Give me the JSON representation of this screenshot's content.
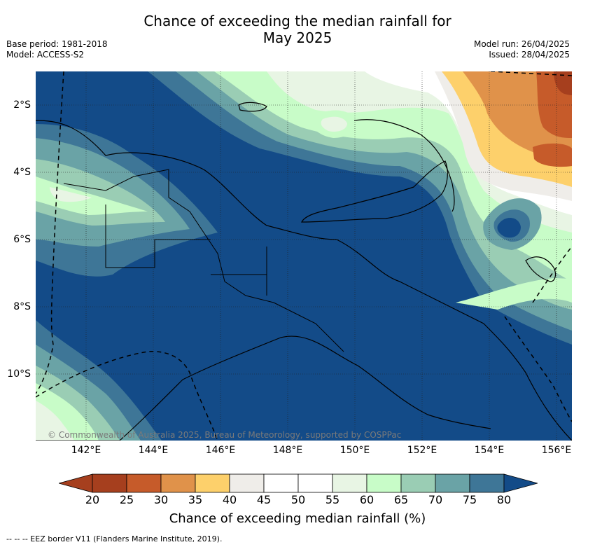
{
  "title_line1": "Chance of exceeding the median rainfall for",
  "title_line2": "May 2025",
  "base_period": "Base period: 1981-2018",
  "model": "Model: ACCESS-S2",
  "model_run": "Model run: 26/04/2025",
  "issued": "Issued: 28/04/2025",
  "copyright": "© Commonwealth of Australia 2025, Bureau of Meteorology, supported by COSPPac",
  "lon_ticks": [
    "142°E",
    "144°E",
    "146°E",
    "148°E",
    "150°E",
    "152°E",
    "154°E",
    "156°E"
  ],
  "lat_ticks": [
    "2°S",
    "4°S",
    "6°S",
    "8°S",
    "10°S"
  ],
  "colorbar": {
    "label": "Chance of exceeding median rainfall (%)",
    "ticks": [
      "20",
      "25",
      "30",
      "35",
      "40",
      "45",
      "50",
      "55",
      "60",
      "65",
      "70",
      "75",
      "80"
    ],
    "colors": [
      "#a63f1e",
      "#c65b2a",
      "#e0924a",
      "#fdd06b",
      "#efede9",
      "#ffffff",
      "#ffffff",
      "#e8f5e4",
      "#c8fcc8",
      "#9acdb4",
      "#6aa3a6",
      "#3e7697"
    ],
    "under_color": "#a63f1e",
    "over_color": "#134b88"
  },
  "legend_eez": "--  --  -- EEZ border V11 (Flanders Marine Institute, 2019)."
}
